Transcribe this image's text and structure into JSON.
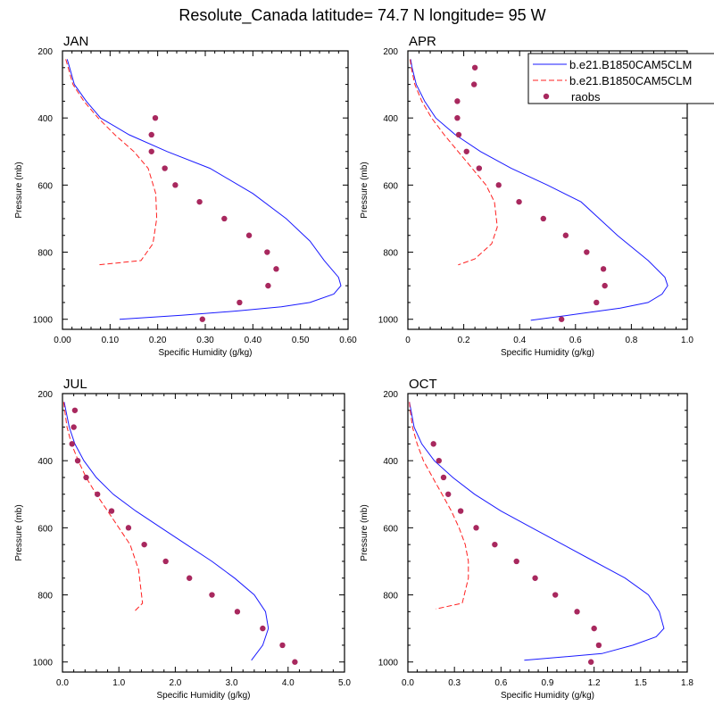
{
  "figure_title": "Resolute_Canada  latitude= 74.7 N longitude= 95 W",
  "colors": {
    "model_solid": "#1a1aff",
    "model_dashed": "#ff2020",
    "raobs": "#a8285e"
  },
  "legend": {
    "entries": [
      {
        "label": "b.e21.B1850CAM5CLM",
        "style": "solid"
      },
      {
        "label": "b.e21.B1850CAM5CLM",
        "style": "dashed"
      },
      {
        "label": "raobs",
        "style": "marker"
      }
    ]
  },
  "chart_data": [
    {
      "type": "line",
      "panel": "JAN",
      "xlabel": "Specific Humidity (g/kg)",
      "ylabel": "Pressure (mb)",
      "xlim": [
        0,
        0.6
      ],
      "ylim": [
        200,
        1030
      ],
      "xticks": [
        0,
        0.1,
        0.2,
        0.3,
        0.4,
        0.5,
        0.6
      ],
      "xticklabels": [
        "0.00",
        "0.10",
        "0.20",
        "0.30",
        "0.40",
        "0.50",
        "0.60"
      ],
      "yticks": [
        200,
        400,
        600,
        800,
        1000
      ],
      "series": [
        {
          "name": "b.e21.B1850CAM5CLM",
          "style": "solid",
          "x": [
            0.01,
            0.015,
            0.025,
            0.05,
            0.08,
            0.14,
            0.22,
            0.31,
            0.4,
            0.47,
            0.52,
            0.55,
            0.58,
            0.585,
            0.57,
            0.52,
            0.46,
            0.37,
            0.25,
            0.12
          ],
          "y": [
            225,
            250,
            300,
            350,
            400,
            450,
            500,
            550,
            625,
            700,
            767,
            825,
            875,
            900,
            925,
            950,
            963,
            975,
            988,
            1000
          ]
        },
        {
          "name": "b.e21.B1850CAM5CLM",
          "style": "dashed",
          "x": [
            0.007,
            0.012,
            0.022,
            0.045,
            0.075,
            0.11,
            0.15,
            0.18,
            0.196,
            0.198,
            0.19,
            0.165,
            0.075
          ],
          "y": [
            225,
            250,
            300,
            350,
            400,
            450,
            500,
            550,
            625,
            700,
            775,
            825,
            838
          ]
        },
        {
          "name": "raobs",
          "style": "marker",
          "x": [
            0.195,
            0.187,
            0.187,
            0.215,
            0.237,
            0.288,
            0.34,
            0.392,
            0.43,
            0.449,
            0.432,
            0.372,
            0.294
          ],
          "y": [
            400,
            450,
            500,
            550,
            600,
            650,
            700,
            750,
            800,
            850,
            900,
            950,
            1000
          ]
        }
      ]
    },
    {
      "type": "line",
      "panel": "APR",
      "xlabel": "Specific Humidity (g/kg)",
      "ylabel": "Pressure (mb)",
      "xlim": [
        0,
        1.0
      ],
      "ylim": [
        200,
        1030
      ],
      "xticks": [
        0,
        0.2,
        0.4,
        0.6,
        0.8,
        1.0
      ],
      "xticklabels": [
        "0",
        "0.2",
        "0.4",
        "0.6",
        "0.8",
        "1.0"
      ],
      "yticks": [
        200,
        400,
        600,
        800,
        1000
      ],
      "series": [
        {
          "name": "b.e21.B1850CAM5CLM",
          "style": "solid",
          "x": [
            0.01,
            0.015,
            0.03,
            0.06,
            0.1,
            0.17,
            0.26,
            0.37,
            0.5,
            0.62,
            0.75,
            0.86,
            0.92,
            0.93,
            0.91,
            0.86,
            0.76,
            0.62,
            0.44
          ],
          "y": [
            225,
            250,
            300,
            350,
            400,
            450,
            500,
            550,
            600,
            650,
            750,
            825,
            875,
            900,
            925,
            950,
            967,
            983,
            1003
          ]
        },
        {
          "name": "b.e21.B1850CAM5CLM",
          "style": "dashed",
          "x": [
            0.008,
            0.012,
            0.025,
            0.05,
            0.085,
            0.13,
            0.18,
            0.23,
            0.28,
            0.31,
            0.32,
            0.3,
            0.24,
            0.18
          ],
          "y": [
            225,
            250,
            300,
            350,
            400,
            450,
            500,
            550,
            600,
            650,
            725,
            775,
            820,
            838
          ]
        },
        {
          "name": "raobs",
          "style": "marker",
          "x": [
            0.24,
            0.237,
            0.177,
            0.177,
            0.182,
            0.21,
            0.255,
            0.325,
            0.398,
            0.485,
            0.565,
            0.64,
            0.7,
            0.705,
            0.675,
            0.55
          ],
          "y": [
            250,
            300,
            350,
            400,
            450,
            500,
            550,
            600,
            650,
            700,
            750,
            800,
            850,
            900,
            950,
            1000
          ]
        }
      ]
    },
    {
      "type": "line",
      "panel": "JUL",
      "xlabel": "Specific Humidity (g/kg)",
      "ylabel": "Pressure (mb)",
      "xlim": [
        0,
        5.0
      ],
      "ylim": [
        200,
        1030
      ],
      "xticks": [
        0,
        1,
        2,
        3,
        4,
        5
      ],
      "xticklabels": [
        "0.0",
        "1.0",
        "2.0",
        "3.0",
        "4.0",
        "5.0"
      ],
      "yticks": [
        200,
        400,
        600,
        800,
        1000
      ],
      "series": [
        {
          "name": "b.e21.B1850CAM5CLM",
          "style": "solid",
          "x": [
            0.03,
            0.06,
            0.12,
            0.22,
            0.38,
            0.6,
            0.9,
            1.3,
            1.75,
            2.2,
            2.65,
            3.05,
            3.4,
            3.6,
            3.65,
            3.55,
            3.35
          ],
          "y": [
            225,
            250,
            300,
            350,
            400,
            450,
            500,
            550,
            600,
            650,
            700,
            750,
            800,
            850,
            900,
            950,
            995
          ]
        },
        {
          "name": "b.e21.B1850CAM5CLM",
          "style": "dashed",
          "x": [
            0.02,
            0.04,
            0.08,
            0.16,
            0.28,
            0.42,
            0.6,
            0.8,
            1.0,
            1.2,
            1.35,
            1.42,
            1.27
          ],
          "y": [
            225,
            250,
            300,
            350,
            400,
            450,
            500,
            550,
            600,
            650,
            725,
            825,
            850
          ]
        },
        {
          "name": "raobs",
          "style": "marker",
          "x": [
            0.22,
            0.2,
            0.17,
            0.27,
            0.42,
            0.62,
            0.87,
            1.17,
            1.45,
            1.83,
            2.25,
            2.65,
            3.1,
            3.55,
            3.9,
            4.12
          ],
          "y": [
            250,
            300,
            350,
            400,
            450,
            500,
            550,
            600,
            650,
            700,
            750,
            800,
            850,
            900,
            950,
            1000
          ]
        }
      ]
    },
    {
      "type": "line",
      "panel": "OCT",
      "xlabel": "Specific Humidity (g/kg)",
      "ylabel": "Pressure (mb)",
      "xlim": [
        0,
        1.8
      ],
      "ylim": [
        200,
        1030
      ],
      "xticks": [
        0,
        0.3,
        0.6,
        0.9,
        1.2,
        1.5,
        1.8
      ],
      "xticklabels": [
        "0.0",
        "0.3",
        "0.6",
        "0.9",
        "1.2",
        "1.5",
        "1.8"
      ],
      "yticks": [
        200,
        400,
        600,
        800,
        1000
      ],
      "series": [
        {
          "name": "b.e21.B1850CAM5CLM",
          "style": "solid",
          "x": [
            0.01,
            0.02,
            0.04,
            0.09,
            0.17,
            0.29,
            0.43,
            0.6,
            0.8,
            1.0,
            1.2,
            1.4,
            1.55,
            1.62,
            1.65,
            1.6,
            1.45,
            1.25,
            0.75
          ],
          "y": [
            225,
            250,
            300,
            350,
            400,
            450,
            500,
            550,
            600,
            650,
            700,
            750,
            800,
            850,
            900,
            925,
            950,
            975,
            995
          ]
        },
        {
          "name": "b.e21.B1850CAM5CLM",
          "style": "dashed",
          "x": [
            0.01,
            0.015,
            0.03,
            0.06,
            0.1,
            0.16,
            0.22,
            0.28,
            0.33,
            0.37,
            0.39,
            0.39,
            0.35,
            0.18
          ],
          "y": [
            225,
            250,
            300,
            350,
            400,
            450,
            500,
            550,
            600,
            650,
            700,
            750,
            825,
            842
          ]
        },
        {
          "name": "raobs",
          "style": "marker",
          "x": [
            0.165,
            0.2,
            0.23,
            0.26,
            0.34,
            0.44,
            0.56,
            0.7,
            0.82,
            0.95,
            1.09,
            1.2,
            1.23,
            1.18
          ],
          "y": [
            350,
            400,
            450,
            500,
            550,
            600,
            650,
            700,
            750,
            800,
            850,
            900,
            950,
            1000
          ]
        }
      ]
    }
  ]
}
